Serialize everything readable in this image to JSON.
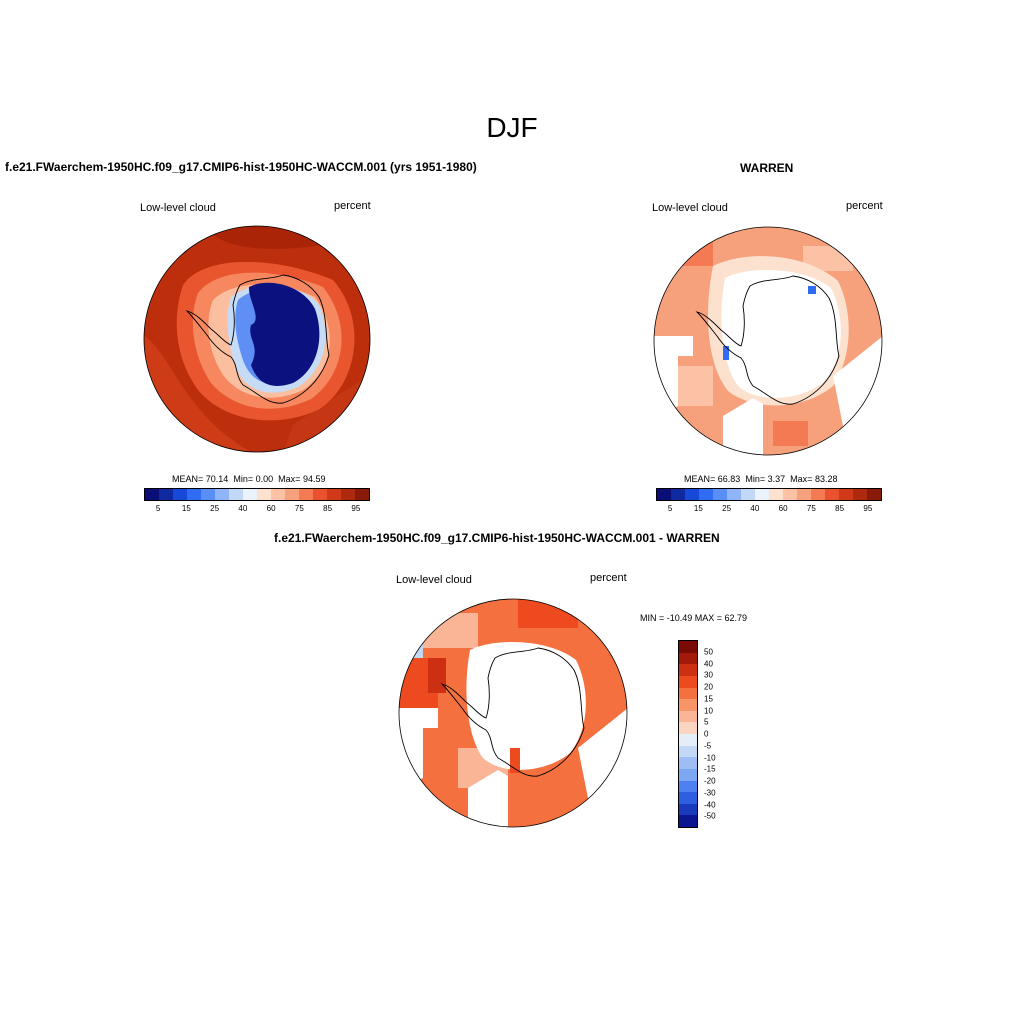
{
  "figure_title": "DJF",
  "panels": [
    {
      "title": "f.e21.FWaerchem-1950HC.f09_g17.CMIP6-hist-1950HC-WACCM.001 (yrs 1951-1980)",
      "variable_label": "Low-level cloud",
      "units_label": "percent",
      "stats": {
        "mean_label": "MEAN=",
        "mean": "70.14",
        "min_label": "Min=",
        "min": "0.00",
        "max_label": "Max=",
        "max": "94.59"
      }
    },
    {
      "title": "WARREN",
      "variable_label": "Low-level cloud",
      "units_label": "percent",
      "stats": {
        "mean_label": "MEAN=",
        "mean": "66.83",
        "min_label": "Min=",
        "min": "3.37",
        "max_label": "Max=",
        "max": "83.28"
      }
    },
    {
      "title": "f.e21.FWaerchem-1950HC.f09_g17.CMIP6-hist-1950HC-WACCM.001 - WARREN",
      "variable_label": "Low-level cloud",
      "units_label": "percent",
      "range_text": "MIN = -10.49 MAX =  62.79"
    }
  ],
  "colorbar_abs": {
    "colors": [
      "#0a0f78",
      "#0f2aa0",
      "#1848d8",
      "#2f6cf2",
      "#5a8ef7",
      "#8fb4f8",
      "#c1d8f7",
      "#eaf2fb",
      "#fde1cf",
      "#fbc2a5",
      "#f7a07c",
      "#f37a53",
      "#e9522f",
      "#d03a1a",
      "#ad2a0e",
      "#8a1a08"
    ],
    "tick_labels": [
      "5",
      "15",
      "25",
      "40",
      "60",
      "75",
      "85",
      "95"
    ]
  },
  "colorbar_diff": {
    "colors_top_to_bottom": [
      "#7a0a04",
      "#a31a0a",
      "#cd2f12",
      "#ee4a1f",
      "#f4703f",
      "#f79468",
      "#fab596",
      "#fcd5c2",
      "#e4edf8",
      "#c3d8f5",
      "#9dbdf4",
      "#7da6f3",
      "#4d80f0",
      "#2d5fe0",
      "#1a3bbb",
      "#0b1690"
    ],
    "tick_labels": [
      "50",
      "40",
      "30",
      "20",
      "15",
      "10",
      "5",
      "0",
      "-5",
      "-10",
      "-15",
      "-20",
      "-30",
      "-40",
      "-50"
    ]
  },
  "chart_data": [
    {
      "type": "heatmap",
      "projection": "south-polar stereographic",
      "title": "f.e21.FWaerchem-1950HC.f09_g17.CMIP6-hist-1950HC-WACCM.001 (yrs 1951-1980)",
      "variable": "Low-level cloud",
      "units": "percent",
      "mean": 70.14,
      "min": 0.0,
      "max": 94.59,
      "levels": [
        5,
        10,
        15,
        20,
        25,
        30,
        40,
        50,
        60,
        70,
        75,
        80,
        85,
        90,
        95
      ]
    },
    {
      "type": "heatmap",
      "projection": "south-polar stereographic",
      "title": "WARREN",
      "variable": "Low-level cloud",
      "units": "percent",
      "mean": 66.83,
      "min": 3.37,
      "max": 83.28,
      "levels": [
        5,
        10,
        15,
        20,
        25,
        30,
        40,
        50,
        60,
        70,
        75,
        80,
        85,
        90,
        95
      ]
    },
    {
      "type": "heatmap",
      "projection": "south-polar stereographic",
      "title": "f.e21.FWaerchem-1950HC.f09_g17.CMIP6-hist-1950HC-WACCM.001 - WARREN",
      "variable": "Low-level cloud",
      "units": "percent",
      "min": -10.49,
      "max": 62.79,
      "levels": [
        -50,
        -40,
        -30,
        -20,
        -15,
        -10,
        -5,
        0,
        5,
        10,
        15,
        20,
        30,
        40,
        50
      ]
    }
  ]
}
